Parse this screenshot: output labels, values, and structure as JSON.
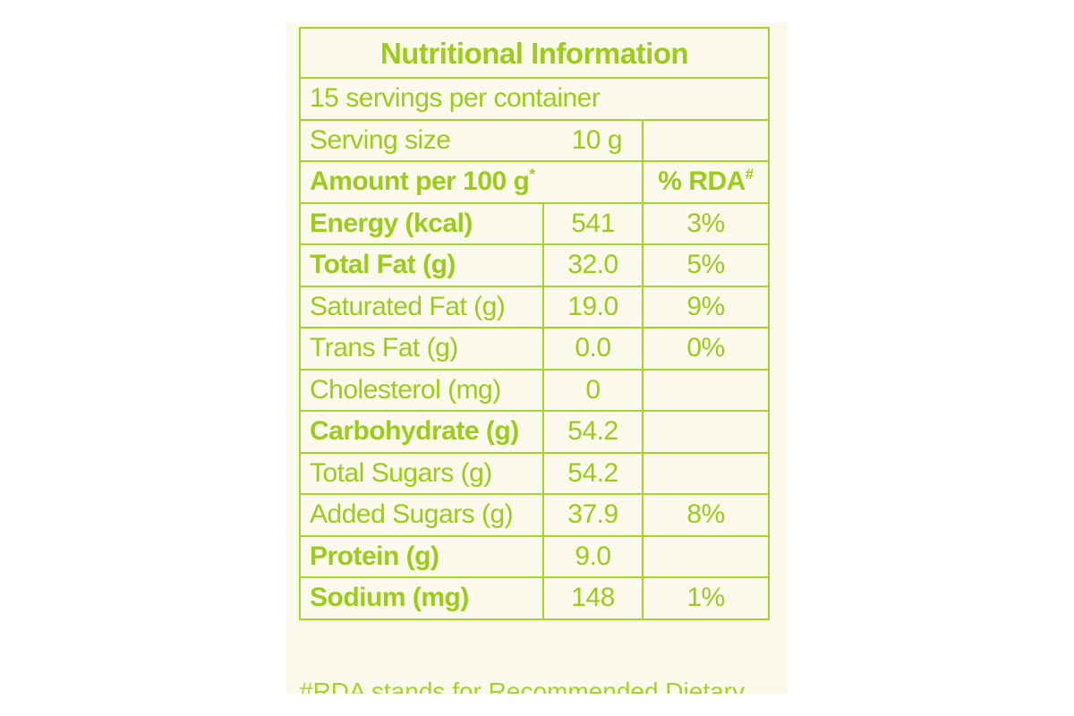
{
  "panel": {
    "title": "Nutritional Information",
    "servings": "15 servings per container",
    "serving_size_label": "Serving size",
    "serving_size_value": "10 g",
    "amount_label": "Amount per 100 g",
    "amount_mark": "*",
    "rda_label": "% RDA",
    "rda_mark": "#"
  },
  "rows": [
    {
      "name": "Energy (kcal)",
      "value": "541",
      "rda": "3%",
      "bold": true
    },
    {
      "name": "Total Fat (g)",
      "value": "32.0",
      "rda": "5%",
      "bold": true
    },
    {
      "name": "Saturated Fat (g)",
      "value": "19.0",
      "rda": "9%",
      "bold": false
    },
    {
      "name": "Trans Fat (g)",
      "value": "0.0",
      "rda": "0%",
      "bold": false
    },
    {
      "name": "Cholesterol (mg)",
      "value": "0",
      "rda": "",
      "bold": false
    },
    {
      "name": "Carbohydrate (g)",
      "value": "54.2",
      "rda": "",
      "bold": true
    },
    {
      "name": "Total Sugars (g)",
      "value": "54.2",
      "rda": "",
      "bold": false
    },
    {
      "name": "Added Sugars (g)",
      "value": "37.9",
      "rda": "8%",
      "bold": false
    },
    {
      "name": "Protein (g)",
      "value": "9.0",
      "rda": "",
      "bold": true
    },
    {
      "name": "Sodium (mg)",
      "value": "148",
      "rda": "1%",
      "bold": true
    }
  ],
  "footnote": "#RDA stands for Recommended Dietary",
  "colors": {
    "text": "#9bcc1a",
    "border": "#a4d32a",
    "paper": "#fbf8ec"
  }
}
